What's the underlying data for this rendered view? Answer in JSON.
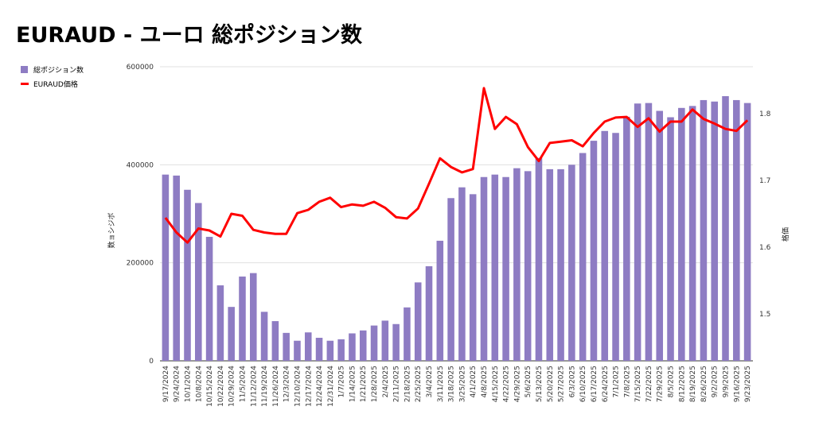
{
  "title": "EURAUD - ユーロ 総ポジション数",
  "legend": {
    "bar_label": "総ポジション数",
    "line_label": "EURAUD価格"
  },
  "colors": {
    "bar": "#8e7cc3",
    "line": "#ff0000",
    "grid": "#e0e0e0"
  },
  "chart_data": {
    "type": "bar",
    "title": "EURAUD - ユーロ 総ポジション数",
    "ylabel": "数ョシジボ",
    "y2label": "格価",
    "ylim": [
      0,
      600000
    ],
    "y2lim": [
      1.43,
      1.87
    ],
    "yticks": [
      "0",
      "200000",
      "400000",
      "600000"
    ],
    "y2ticks": [
      1.5,
      1.6,
      1.7,
      1.8
    ],
    "y2ticklabels": [
      "1.5",
      "1.6",
      "1.7",
      "1.8"
    ],
    "grid": true,
    "legend_position": "top-left",
    "categories": [
      "9/17/2024",
      "9/24/2024",
      "10/1/2024",
      "10/8/2024",
      "10/15/2024",
      "10/22/2024",
      "10/29/2024",
      "11/5/2024",
      "11/12/2024",
      "11/19/2024",
      "11/26/2024",
      "12/3/2024",
      "12/10/2024",
      "12/17/2024",
      "12/24/2024",
      "12/31/2024",
      "1/7/2025",
      "1/14/2025",
      "1/21/2025",
      "1/28/2025",
      "2/4/2025",
      "2/11/2025",
      "2/18/2025",
      "2/25/2025",
      "3/4/2025",
      "3/11/2025",
      "3/18/2025",
      "3/25/2025",
      "4/1/2025",
      "4/8/2025",
      "4/15/2025",
      "4/22/2025",
      "4/29/2025",
      "5/6/2025",
      "5/13/2025",
      "5/20/2025",
      "5/27/2025",
      "6/3/2025",
      "6/10/2025",
      "6/17/2025",
      "6/24/2025",
      "7/1/2025",
      "7/8/2025",
      "7/15/2025",
      "7/22/2025",
      "7/29/2025",
      "8/5/2025",
      "8/12/2025",
      "8/19/2025",
      "8/26/2025",
      "9/2/2025",
      "9/9/2025",
      "9/16/2025",
      "9/23/2025"
    ],
    "series": [
      {
        "name": "総ポジション数",
        "type": "bar",
        "axis": "left",
        "values": [
          380000,
          378000,
          349000,
          322000,
          253000,
          154000,
          110000,
          172000,
          179000,
          100000,
          81000,
          57000,
          41000,
          58000,
          47000,
          41000,
          44000,
          56000,
          62000,
          72000,
          82000,
          75000,
          109000,
          160000,
          193000,
          245000,
          332000,
          354000,
          340000,
          375000,
          380000,
          375000,
          393000,
          387000,
          414000,
          391000,
          391000,
          400000,
          424000,
          449000,
          469000,
          465000,
          498000,
          525000,
          526000,
          510000,
          497000,
          516000,
          520000,
          532000,
          529000,
          540000,
          532000,
          526000
        ]
      },
      {
        "name": "EURAUD価格",
        "type": "line",
        "axis": "right",
        "values": [
          1.644,
          1.622,
          1.607,
          1.628,
          1.625,
          1.616,
          1.65,
          1.647,
          1.626,
          1.622,
          1.62,
          1.62,
          1.651,
          1.656,
          1.668,
          1.674,
          1.66,
          1.664,
          1.662,
          1.668,
          1.659,
          1.645,
          1.643,
          1.658,
          1.695,
          1.733,
          1.72,
          1.712,
          1.717,
          1.838,
          1.777,
          1.795,
          1.784,
          1.75,
          1.729,
          1.756,
          1.758,
          1.76,
          1.751,
          1.771,
          1.788,
          1.794,
          1.795,
          1.78,
          1.793,
          1.773,
          1.788,
          1.788,
          1.806,
          1.792,
          1.785,
          1.777,
          1.774,
          1.79
        ]
      }
    ]
  }
}
